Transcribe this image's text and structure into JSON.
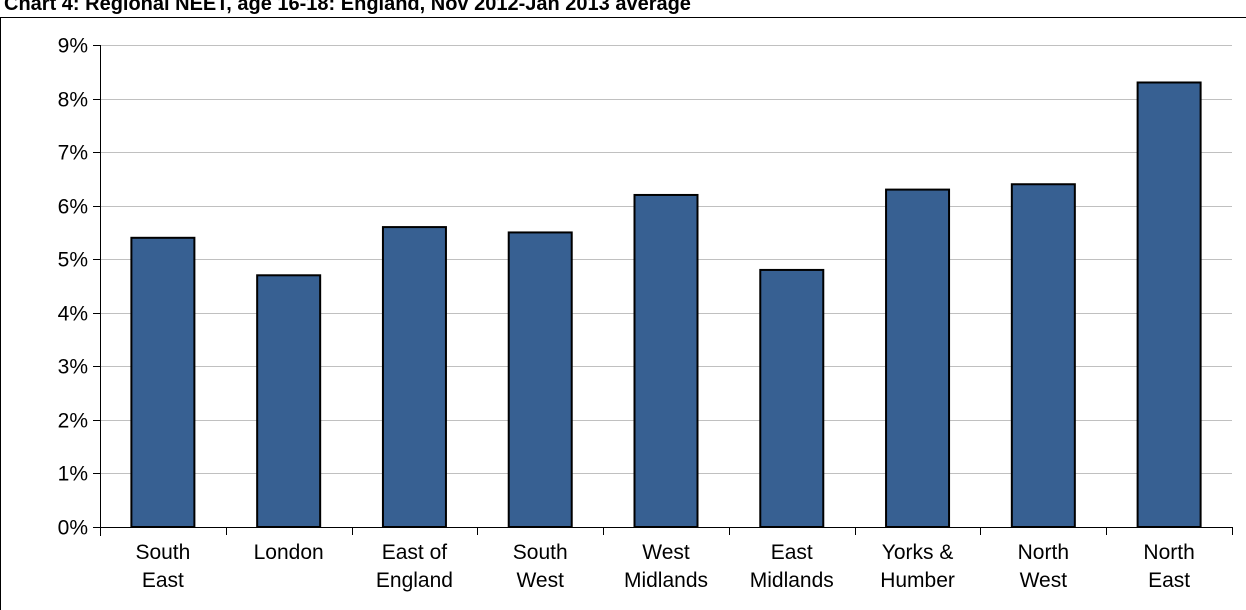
{
  "chart_data": {
    "type": "bar",
    "title": "Chart 4: Regional NEET, age 16-18: England, Nov 2012-Jan 2013 average",
    "xlabel": "",
    "ylabel": "",
    "categories": [
      [
        "South",
        "East"
      ],
      [
        "London"
      ],
      [
        "East of",
        "England"
      ],
      [
        "South",
        "West"
      ],
      [
        "West",
        "Midlands"
      ],
      [
        "East",
        "Midlands"
      ],
      [
        "Yorks &",
        "Humber"
      ],
      [
        "North",
        "West"
      ],
      [
        "North",
        "East"
      ]
    ],
    "values": [
      5.4,
      4.7,
      5.6,
      5.5,
      6.2,
      4.8,
      6.3,
      6.4,
      8.3
    ],
    "ylim": [
      0,
      9
    ],
    "yticks": [
      0,
      1,
      2,
      3,
      4,
      5,
      6,
      7,
      8,
      9
    ],
    "ytick_suffix": "%",
    "grid": true,
    "bar_color": "#376092",
    "bar_edge_color": "#000000",
    "grid_color": "#c0c0c0"
  }
}
